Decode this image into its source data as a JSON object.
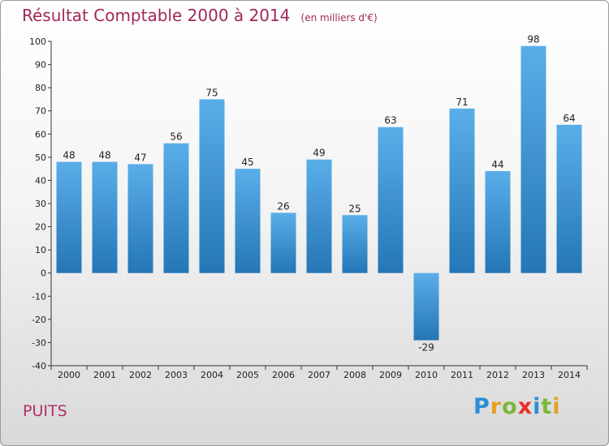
{
  "title": "Résultat Comptable 2000 à 2014",
  "subtitle": "(en milliers d'€)",
  "city": "PUITS",
  "logo": {
    "letters": [
      "P",
      "r",
      "o",
      "x",
      "i",
      "t",
      "i"
    ],
    "colors": [
      "#2a8fd6",
      "#e8a020",
      "#7ab83a",
      "#e8302a",
      "#2a8fd6",
      "#7ab83a",
      "#e8a020"
    ]
  },
  "colors": {
    "bar_top": "#5aaee8",
    "bar_bottom": "#2476b6",
    "title": "#a0285a"
  },
  "chart_data": {
    "type": "bar",
    "title": "Résultat Comptable 2000 à 2014",
    "subtitle": "(en milliers d'€)",
    "categories": [
      "2000",
      "2001",
      "2002",
      "2003",
      "2004",
      "2005",
      "2006",
      "2007",
      "2008",
      "2009",
      "2010",
      "2011",
      "2012",
      "2013",
      "2014"
    ],
    "values": [
      48,
      48,
      47,
      56,
      75,
      45,
      26,
      49,
      25,
      63,
      -29,
      71,
      44,
      98,
      64
    ],
    "ylim": [
      -40,
      100
    ],
    "yticks": [
      100,
      90,
      80,
      70,
      60,
      50,
      40,
      30,
      20,
      10,
      0,
      -10,
      -20,
      -30,
      -40
    ],
    "grid": false,
    "xlabel": "",
    "ylabel": ""
  }
}
